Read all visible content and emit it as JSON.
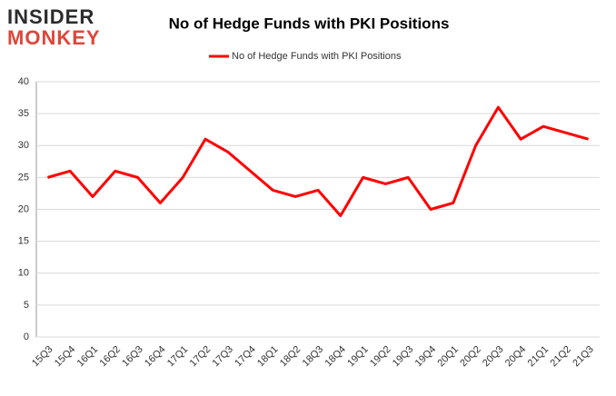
{
  "logo": {
    "line1": "INSIDER",
    "line2": "MONKEY"
  },
  "chart_data": {
    "type": "line",
    "title": "No of Hedge Funds with PKI Positions",
    "categories": [
      "15Q3",
      "15Q4",
      "16Q1",
      "16Q2",
      "16Q3",
      "16Q4",
      "17Q1",
      "17Q2",
      "17Q3",
      "17Q4",
      "18Q1",
      "18Q2",
      "18Q3",
      "18Q4",
      "19Q1",
      "19Q2",
      "19Q3",
      "19Q4",
      "20Q1",
      "20Q2",
      "20Q3",
      "20Q4",
      "21Q1",
      "21Q2",
      "21Q3"
    ],
    "series": [
      {
        "name": "No of Hedge Funds with PKI Positions",
        "color": "#ff0000",
        "values": [
          25,
          26,
          22,
          26,
          25,
          21,
          25,
          31,
          29,
          26,
          23,
          22,
          23,
          19,
          25,
          24,
          25,
          20,
          21,
          30,
          36,
          31,
          33,
          32,
          31
        ]
      }
    ],
    "ylim": [
      0,
      40
    ],
    "yticks": [
      0,
      5,
      10,
      15,
      20,
      25,
      30,
      35,
      40
    ],
    "grid": true,
    "legend": "top"
  }
}
